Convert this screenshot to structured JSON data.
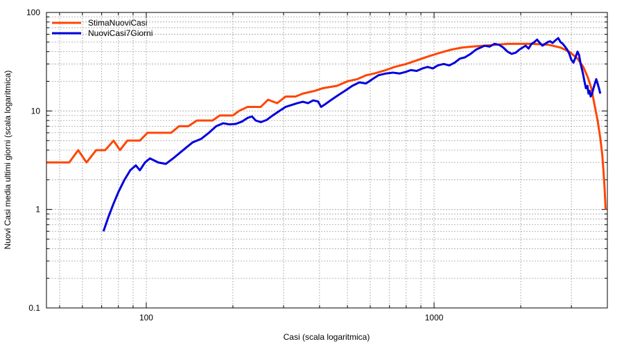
{
  "chart_data": {
    "type": "line",
    "x_scale": "log",
    "y_scale": "log",
    "xlim": [
      45,
      4000
    ],
    "ylim": [
      0.1,
      100
    ],
    "xlabel": "Casi (scala logaritmica)",
    "ylabel": "Nuovi Casi media ultimi giorni (scala logaritmica)",
    "grid": true,
    "legend_position": "top-left",
    "x_ticks": [
      {
        "value": 100,
        "label": "100"
      },
      {
        "value": 1000,
        "label": "1000"
      }
    ],
    "y_ticks": [
      {
        "value": 0.1,
        "label": "0.1"
      },
      {
        "value": 1,
        "label": "1"
      },
      {
        "value": 10,
        "label": "10"
      },
      {
        "value": 100,
        "label": "100"
      }
    ],
    "series": [
      {
        "name": "StimaNuoviCasi",
        "color": "#ff4500",
        "points": [
          [
            45,
            3
          ],
          [
            54,
            3
          ],
          [
            58,
            4
          ],
          [
            62,
            3
          ],
          [
            67,
            4
          ],
          [
            72,
            4
          ],
          [
            77,
            5
          ],
          [
            81,
            4
          ],
          [
            86,
            5
          ],
          [
            95,
            5
          ],
          [
            101,
            6
          ],
          [
            122,
            6
          ],
          [
            130,
            7
          ],
          [
            140,
            7
          ],
          [
            150,
            8
          ],
          [
            170,
            8
          ],
          [
            180,
            9
          ],
          [
            200,
            9
          ],
          [
            210,
            10
          ],
          [
            225,
            11
          ],
          [
            250,
            11
          ],
          [
            265,
            13
          ],
          [
            285,
            12
          ],
          [
            305,
            14
          ],
          [
            330,
            14
          ],
          [
            350,
            15
          ],
          [
            385,
            16
          ],
          [
            410,
            17
          ],
          [
            460,
            18
          ],
          [
            500,
            20
          ],
          [
            540,
            21
          ],
          [
            580,
            23
          ],
          [
            620,
            24
          ],
          [
            680,
            26
          ],
          [
            730,
            28
          ],
          [
            800,
            30
          ],
          [
            880,
            33
          ],
          [
            960,
            36
          ],
          [
            1050,
            39
          ],
          [
            1150,
            42
          ],
          [
            1250,
            44
          ],
          [
            1350,
            45
          ],
          [
            1500,
            46
          ],
          [
            1650,
            47
          ],
          [
            1800,
            48
          ],
          [
            2000,
            48
          ],
          [
            2200,
            48
          ],
          [
            2500,
            47
          ],
          [
            2750,
            44
          ],
          [
            2950,
            40
          ],
          [
            3150,
            34
          ],
          [
            3300,
            28
          ],
          [
            3420,
            22
          ],
          [
            3520,
            17
          ],
          [
            3600,
            12
          ],
          [
            3700,
            8
          ],
          [
            3780,
            5.3
          ],
          [
            3840,
            3.6
          ],
          [
            3880,
            2.4
          ],
          [
            3910,
            1.7
          ],
          [
            3930,
            1.25
          ],
          [
            3945,
            1
          ]
        ]
      },
      {
        "name": "NuoviCasi7Giorni",
        "color": "#0000dd",
        "points": [
          [
            71,
            0.6
          ],
          [
            74,
            0.85
          ],
          [
            77,
            1.15
          ],
          [
            80,
            1.5
          ],
          [
            84,
            2
          ],
          [
            88,
            2.5
          ],
          [
            92,
            2.8
          ],
          [
            95,
            2.5
          ],
          [
            99,
            3
          ],
          [
            103,
            3.3
          ],
          [
            110,
            3
          ],
          [
            117,
            2.9
          ],
          [
            124,
            3.3
          ],
          [
            130,
            3.7
          ],
          [
            137,
            4.2
          ],
          [
            145,
            4.8
          ],
          [
            155,
            5.2
          ],
          [
            165,
            6
          ],
          [
            175,
            7
          ],
          [
            185,
            7.5
          ],
          [
            195,
            7.3
          ],
          [
            205,
            7.4
          ],
          [
            215,
            7.8
          ],
          [
            225,
            8.5
          ],
          [
            233,
            8.8
          ],
          [
            240,
            8
          ],
          [
            250,
            7.7
          ],
          [
            262,
            8.1
          ],
          [
            275,
            9
          ],
          [
            290,
            10
          ],
          [
            305,
            11
          ],
          [
            320,
            11.5
          ],
          [
            335,
            12
          ],
          [
            350,
            12.4
          ],
          [
            365,
            12
          ],
          [
            380,
            12.8
          ],
          [
            395,
            12.5
          ],
          [
            405,
            11
          ],
          [
            420,
            11.8
          ],
          [
            440,
            13
          ],
          [
            465,
            14.5
          ],
          [
            490,
            16
          ],
          [
            520,
            18
          ],
          [
            550,
            19.5
          ],
          [
            580,
            19
          ],
          [
            610,
            21
          ],
          [
            640,
            23
          ],
          [
            680,
            24
          ],
          [
            720,
            24.5
          ],
          [
            760,
            24
          ],
          [
            800,
            25
          ],
          [
            830,
            26
          ],
          [
            870,
            25.5
          ],
          [
            910,
            27
          ],
          [
            950,
            28
          ],
          [
            990,
            27
          ],
          [
            1030,
            29
          ],
          [
            1080,
            30
          ],
          [
            1130,
            29
          ],
          [
            1180,
            31
          ],
          [
            1230,
            34
          ],
          [
            1280,
            35
          ],
          [
            1340,
            38
          ],
          [
            1400,
            42
          ],
          [
            1450,
            44
          ],
          [
            1500,
            46
          ],
          [
            1560,
            45
          ],
          [
            1620,
            48
          ],
          [
            1680,
            47
          ],
          [
            1740,
            44
          ],
          [
            1800,
            40
          ],
          [
            1860,
            38
          ],
          [
            1920,
            39
          ],
          [
            1980,
            42
          ],
          [
            2030,
            44
          ],
          [
            2080,
            46
          ],
          [
            2130,
            43
          ],
          [
            2180,
            48
          ],
          [
            2230,
            50
          ],
          [
            2280,
            53
          ],
          [
            2330,
            49
          ],
          [
            2380,
            46
          ],
          [
            2430,
            48
          ],
          [
            2480,
            50
          ],
          [
            2530,
            51
          ],
          [
            2580,
            49
          ],
          [
            2640,
            52
          ],
          [
            2700,
            55
          ],
          [
            2750,
            50
          ],
          [
            2800,
            48
          ],
          [
            2850,
            45
          ],
          [
            2900,
            42
          ],
          [
            2950,
            38
          ],
          [
            3000,
            33
          ],
          [
            3050,
            31
          ],
          [
            3100,
            35
          ],
          [
            3150,
            40
          ],
          [
            3190,
            37
          ],
          [
            3230,
            30
          ],
          [
            3270,
            26
          ],
          [
            3300,
            23
          ],
          [
            3330,
            20
          ],
          [
            3370,
            17
          ],
          [
            3410,
            18
          ],
          [
            3440,
            15
          ],
          [
            3470,
            16
          ],
          [
            3500,
            14
          ],
          [
            3540,
            15
          ],
          [
            3580,
            17
          ],
          [
            3620,
            19
          ],
          [
            3660,
            21
          ],
          [
            3700,
            19
          ],
          [
            3740,
            17
          ],
          [
            3780,
            15
          ]
        ]
      }
    ]
  }
}
